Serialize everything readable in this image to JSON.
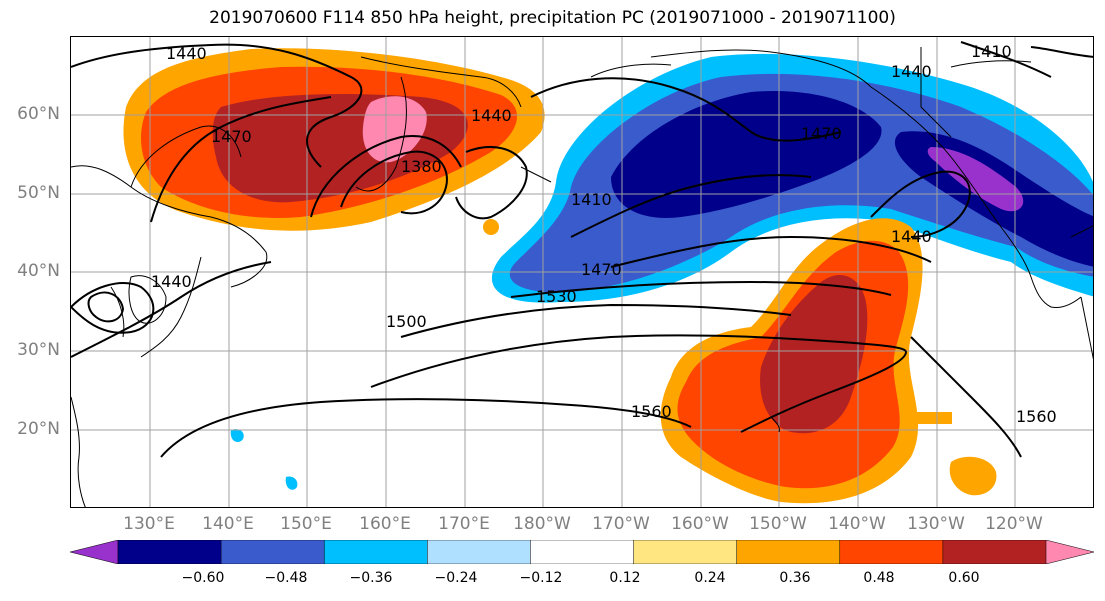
{
  "title": "2019070600 F114 850 hPa height, precipitation PC (2019071000 - 2019071100)",
  "lat_labels": [
    "60°N",
    "50°N",
    "40°N",
    "30°N",
    "20°N"
  ],
  "lon_labels": [
    "130°E",
    "140°E",
    "150°E",
    "160°E",
    "170°E",
    "180°W",
    "170°W",
    "160°W",
    "150°W",
    "140°W",
    "130°W",
    "120°W"
  ],
  "colorbar": {
    "colors": [
      "#9932cc",
      "#00008b",
      "#3a5bcc",
      "#00bfff",
      "#b0e0ff",
      "#ffffff",
      "#ffe680",
      "#ffa500",
      "#ff4500",
      "#b22222",
      "#ff88b0"
    ],
    "ticks": [
      "−0.60",
      "−0.48",
      "−0.36",
      "−0.24",
      "−0.12",
      "0.12",
      "0.24",
      "0.36",
      "0.48",
      "0.60"
    ]
  },
  "contour_labels": [
    "1440",
    "1470",
    "1440",
    "1380",
    "1410",
    "1470",
    "1440",
    "1410",
    "1470",
    "1440",
    "1500",
    "1530",
    "1560",
    "1560",
    "1440"
  ]
}
